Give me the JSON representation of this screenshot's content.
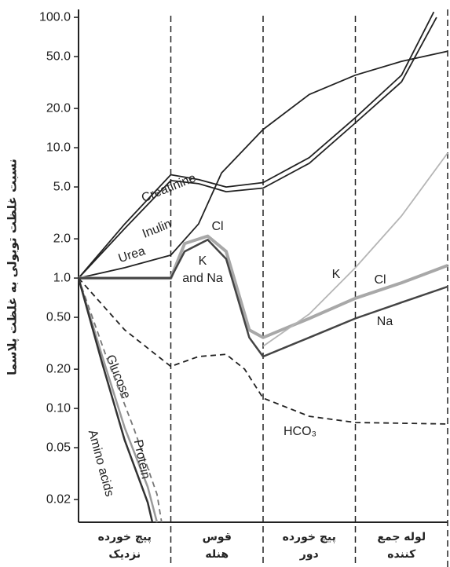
{
  "chart_data": {
    "type": "line",
    "ylabel": "نسبت غلظت توبولی به غلظت پلاسما",
    "log_y": true,
    "ylim": [
      0.0134,
      115
    ],
    "yticks": [
      {
        "value": 100,
        "label": "100.0"
      },
      {
        "value": 50,
        "label": "50.0"
      },
      {
        "value": 20,
        "label": "20.0"
      },
      {
        "value": 10,
        "label": "10.0"
      },
      {
        "value": 5,
        "label": "5.0"
      },
      {
        "value": 2,
        "label": "2.0"
      },
      {
        "value": 1,
        "label": "1.0"
      },
      {
        "value": 0.5,
        "label": "0.50"
      },
      {
        "value": 0.2,
        "label": "0.20"
      },
      {
        "value": 0.1,
        "label": "0.10"
      },
      0.05,
      0.02
    ],
    "xlim": [
      0,
      4
    ],
    "categories": [
      [
        "پیچ خورده",
        "نزدیک"
      ],
      [
        "قوس",
        "هنله"
      ],
      [
        "پیچ خورده",
        "دور"
      ],
      [
        "لوله جمع",
        "کننده"
      ]
    ],
    "series": [
      {
        "name": "Creatinine",
        "color": "#222222",
        "x": [
          0,
          0.5,
          1,
          1.3,
          1.6,
          2,
          2.5,
          3,
          3.5,
          3.85
        ],
        "values": [
          1,
          2.6,
          6.2,
          5.7,
          5.0,
          5.4,
          8.4,
          17,
          36,
          110
        ]
      },
      {
        "name": "Inulin",
        "color": "#222222",
        "x": [
          0,
          0.5,
          1,
          1.3,
          1.6,
          2,
          2.5,
          3,
          3.5,
          3.88
        ],
        "values": [
          1,
          2.4,
          5.6,
          5.3,
          4.6,
          4.9,
          7.6,
          15.5,
          32,
          100
        ]
      },
      {
        "name": "Urea",
        "color": "#222222",
        "x": [
          0,
          0.5,
          1,
          1.3,
          1.55,
          2,
          2.5,
          3,
          3.5,
          4
        ],
        "values": [
          1,
          1.2,
          1.5,
          2.6,
          6.4,
          13.8,
          25.6,
          36,
          46,
          55
        ]
      },
      {
        "name": "Cl",
        "color": "#a8a8a8",
        "width": 4,
        "x": [
          0,
          1,
          1.15,
          1.4,
          1.6,
          1.85,
          2,
          2.5,
          3,
          3.5,
          4
        ],
        "values": [
          1,
          1.0,
          1.84,
          2.1,
          1.6,
          0.4,
          0.35,
          0.49,
          0.7,
          0.92,
          1.25
        ]
      },
      {
        "name": "Na",
        "color": "#444444",
        "width": 2.5,
        "x": [
          0,
          1,
          1.15,
          1.4,
          1.6,
          1.85,
          2,
          2.5,
          3,
          3.5,
          4
        ],
        "values": [
          1,
          1.0,
          1.6,
          1.97,
          1.4,
          0.35,
          0.25,
          0.35,
          0.49,
          0.65,
          0.86
        ]
      },
      {
        "name": "K",
        "color": "#b5b5b5",
        "x": [
          2,
          2.5,
          3,
          3.5,
          4
        ],
        "values": [
          0.3,
          0.53,
          1.2,
          3.0,
          9.1
        ]
      },
      {
        "name": "HCO₃",
        "color": "#222222",
        "dashed": true,
        "x": [
          0,
          0.5,
          1,
          1.3,
          1.6,
          1.8,
          2,
          2.5,
          3,
          4
        ],
        "values": [
          1,
          0.4,
          0.21,
          0.25,
          0.26,
          0.2,
          0.12,
          0.087,
          0.078,
          0.076
        ]
      },
      {
        "name": "Glucose",
        "color": "#9a9a9a",
        "width": 2.5,
        "x": [
          0,
          0.25,
          0.5,
          0.75,
          0.85
        ],
        "values": [
          1,
          0.26,
          0.071,
          0.025,
          0.0134
        ]
      },
      {
        "name": "Protein",
        "color": "#777777",
        "dashed": true,
        "x": [
          0,
          0.3,
          0.6,
          0.85,
          0.9
        ],
        "values": [
          1,
          0.25,
          0.07,
          0.022,
          0.0134
        ]
      },
      {
        "name": "Amino acids",
        "color": "#333333",
        "width": 2.5,
        "x": [
          0,
          0.25,
          0.5,
          0.75,
          0.8
        ],
        "values": [
          1,
          0.23,
          0.057,
          0.019,
          0.0134
        ]
      }
    ],
    "annotations": [
      [
        "K",
        "and Na"
      ],
      "Cl"
    ]
  }
}
